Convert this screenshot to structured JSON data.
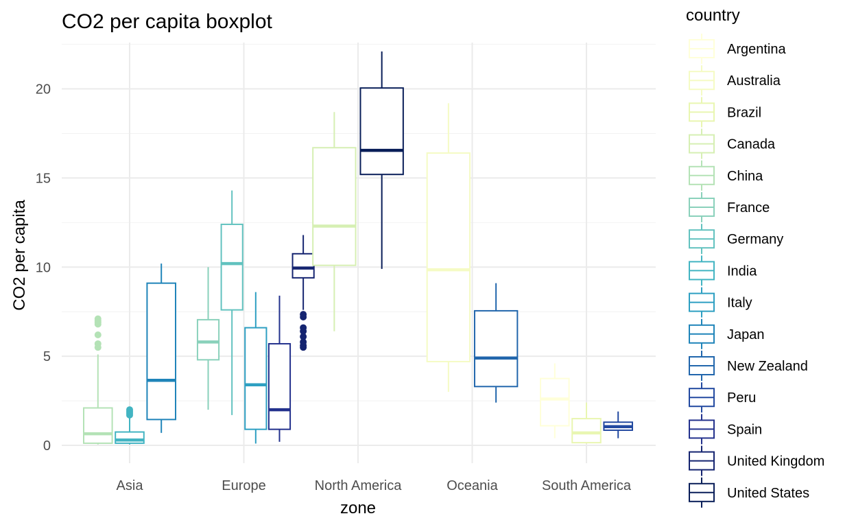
{
  "chart_data": {
    "type": "boxplot",
    "title": "CO2 per capita boxplot",
    "xlabel": "zone",
    "ylabel": "CO2 per capita",
    "ylim": [
      -1,
      22.6
    ],
    "yticks": [
      0,
      5,
      10,
      15,
      20
    ],
    "grid": true,
    "legend_title": "country",
    "legend_placement": "right",
    "categories": [
      "Asia",
      "Europe",
      "North America",
      "Oceania",
      "South America"
    ],
    "series": [
      {
        "name": "Argentina",
        "color": "#ffffd9"
      },
      {
        "name": "Australia",
        "color": "#f5fbc4"
      },
      {
        "name": "Brazil",
        "color": "#e9f6b1"
      },
      {
        "name": "Canada",
        "color": "#d6efb3"
      },
      {
        "name": "China",
        "color": "#b4e2b6"
      },
      {
        "name": "France",
        "color": "#8ad1bb"
      },
      {
        "name": "Germany",
        "color": "#62c2bf"
      },
      {
        "name": "India",
        "color": "#42b4c2"
      },
      {
        "name": "Italy",
        "color": "#2d9fc2"
      },
      {
        "name": "Japan",
        "color": "#1f84b9"
      },
      {
        "name": "New Zealand",
        "color": "#2166ac"
      },
      {
        "name": "Peru",
        "color": "#2249a0"
      },
      {
        "name": "Spain",
        "color": "#23318d"
      },
      {
        "name": "United Kingdom",
        "color": "#152470"
      },
      {
        "name": "United States",
        "color": "#081d58"
      }
    ],
    "boxes": [
      {
        "category": "Asia",
        "series": "China",
        "slot": 0,
        "slots": 3,
        "min": 0.05,
        "q1": 0.12,
        "median": 0.65,
        "q3": 2.1,
        "max": 5.1,
        "outliers": [
          5.5,
          5.7,
          6.2,
          6.8,
          6.9,
          7.0,
          7.1
        ]
      },
      {
        "category": "Asia",
        "series": "India",
        "slot": 1,
        "slots": 3,
        "min": 0.05,
        "q1": 0.12,
        "median": 0.3,
        "q3": 0.75,
        "max": 1.6,
        "outliers": [
          1.7,
          1.8,
          1.9,
          2.0
        ]
      },
      {
        "category": "Asia",
        "series": "Japan",
        "slot": 2,
        "slots": 3,
        "min": 0.7,
        "q1": 1.45,
        "median": 3.65,
        "q3": 9.1,
        "max": 10.2,
        "outliers": []
      },
      {
        "category": "Europe",
        "series": "France",
        "slot": 0,
        "slots": 4,
        "min": 2.0,
        "q1": 4.8,
        "median": 5.8,
        "q3": 7.05,
        "max": 10.0,
        "outliers": []
      },
      {
        "category": "Europe",
        "series": "Germany",
        "slot": 1,
        "slots": 4,
        "min": 1.7,
        "q1": 7.6,
        "median": 10.2,
        "q3": 12.4,
        "max": 14.3,
        "outliers": []
      },
      {
        "category": "Europe",
        "series": "Italy",
        "slot": 2,
        "slots": 4,
        "min": 0.1,
        "q1": 0.9,
        "median": 3.4,
        "q3": 6.6,
        "max": 8.6,
        "outliers": []
      },
      {
        "category": "Europe",
        "series": "Spain",
        "slot": 3,
        "slots": 4,
        "min": 0.2,
        "q1": 0.9,
        "median": 2.0,
        "q3": 5.7,
        "max": 8.4,
        "outliers": []
      },
      {
        "category": "Europe",
        "series": "United Kingdom",
        "slot": 4,
        "slots": 4,
        "min": 7.6,
        "q1": 9.4,
        "median": 9.95,
        "q3": 10.75,
        "max": 11.8,
        "outliers": [
          7.2,
          7.35,
          6.6,
          6.4,
          6.1,
          5.8,
          5.6,
          5.5
        ]
      },
      {
        "category": "North America",
        "series": "Canada",
        "slot": 0,
        "slots": 2,
        "min": 6.4,
        "q1": 10.1,
        "median": 12.3,
        "q3": 16.7,
        "max": 18.7,
        "outliers": []
      },
      {
        "category": "North America",
        "series": "United States",
        "slot": 1,
        "slots": 2,
        "min": 9.9,
        "q1": 15.2,
        "median": 16.55,
        "q3": 20.05,
        "max": 22.1,
        "outliers": []
      },
      {
        "category": "Oceania",
        "series": "Australia",
        "slot": 0,
        "slots": 2,
        "min": 3.0,
        "q1": 4.7,
        "median": 9.85,
        "q3": 16.4,
        "max": 19.2,
        "outliers": []
      },
      {
        "category": "Oceania",
        "series": "New Zealand",
        "slot": 1,
        "slots": 2,
        "min": 2.4,
        "q1": 3.3,
        "median": 4.9,
        "q3": 7.55,
        "max": 9.1,
        "outliers": []
      },
      {
        "category": "South America",
        "series": "Argentina",
        "slot": 0,
        "slots": 3,
        "min": 0.4,
        "q1": 1.1,
        "median": 2.6,
        "q3": 3.75,
        "max": 4.6,
        "outliers": []
      },
      {
        "category": "South America",
        "series": "Brazil",
        "slot": 1,
        "slots": 3,
        "min": 0.1,
        "q1": 0.15,
        "median": 0.7,
        "q3": 1.5,
        "max": 2.4,
        "outliers": []
      },
      {
        "category": "South America",
        "series": "Peru",
        "slot": 2,
        "slots": 3,
        "min": 0.4,
        "q1": 0.85,
        "median": 1.05,
        "q3": 1.3,
        "max": 1.9,
        "outliers": []
      }
    ]
  }
}
